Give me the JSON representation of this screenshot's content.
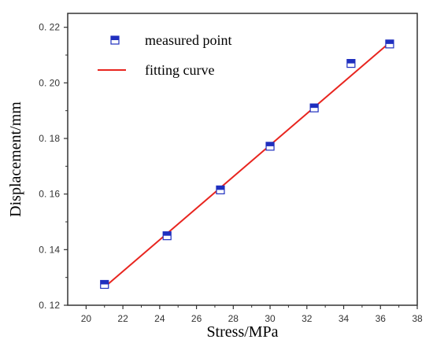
{
  "chart_data": {
    "type": "scatter",
    "title": "",
    "xlabel": "Stress/MPa",
    "ylabel": "Displacement/mm",
    "xlim": [
      19,
      38
    ],
    "ylim": [
      0.12,
      0.225
    ],
    "xticks": [
      20,
      22,
      24,
      26,
      28,
      30,
      32,
      34,
      36,
      38
    ],
    "yticks": [
      0.12,
      0.14,
      0.16,
      0.18,
      0.2,
      0.22
    ],
    "xtick_labels": [
      "20",
      "22",
      "24",
      "26",
      "28",
      "30",
      "32",
      "34",
      "36",
      "38"
    ],
    "ytick_labels": [
      "0. 12",
      "0. 14",
      "0. 16",
      "0. 18",
      "0. 20",
      "0. 22"
    ],
    "grid": false,
    "legend_position": "top-left",
    "series": [
      {
        "name": "measured point",
        "marker": "half-filled-square",
        "color": "#1f2fbf",
        "x": [
          21.0,
          24.4,
          27.3,
          30.0,
          32.4,
          34.4,
          36.5
        ],
        "y": [
          0.1275,
          0.145,
          0.1615,
          0.1772,
          0.191,
          0.207,
          0.214
        ]
      },
      {
        "name": "fitting curve",
        "kind": "line",
        "color": "#e8251f",
        "x": [
          21.0,
          36.5
        ],
        "y": [
          0.1265,
          0.2145
        ]
      }
    ]
  }
}
